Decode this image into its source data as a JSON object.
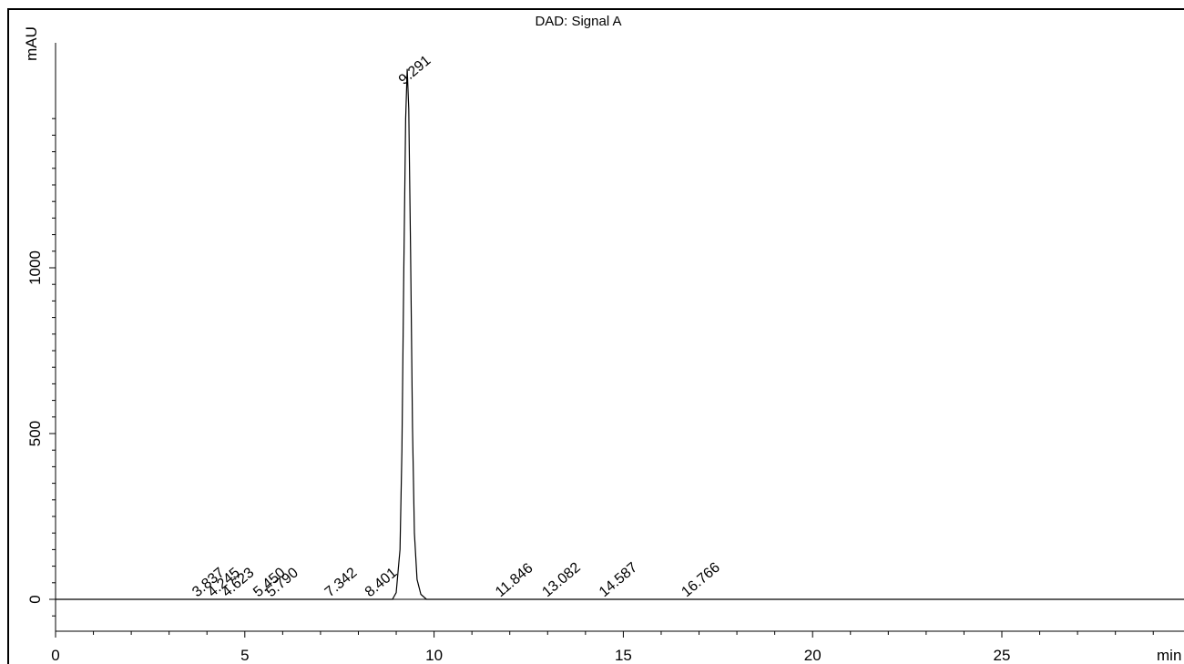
{
  "chart_data": {
    "type": "line",
    "title": "DAD: Signal A",
    "xlabel": "min",
    "ylabel": "mAU",
    "xlim": [
      0,
      30
    ],
    "ylim": [
      -80,
      1500
    ],
    "x_ticks": [
      0,
      5,
      10,
      15,
      20,
      25
    ],
    "y_ticks": [
      0,
      500,
      1000
    ],
    "grid": false,
    "series": [
      {
        "x": [
          0,
          8.9,
          9.0,
          9.1,
          9.15,
          9.2,
          9.25,
          9.291,
          9.33,
          9.38,
          9.43,
          9.48,
          9.55,
          9.65,
          9.8,
          30
        ],
        "values": [
          0,
          0,
          20,
          150,
          450,
          1000,
          1450,
          1600,
          1480,
          1050,
          520,
          200,
          60,
          15,
          0,
          0
        ]
      }
    ],
    "peaks": [
      {
        "rt": 3.837,
        "label": "3.837"
      },
      {
        "rt": 4.245,
        "label": "4.245"
      },
      {
        "rt": 4.623,
        "label": "4.623"
      },
      {
        "rt": 5.45,
        "label": "5.450"
      },
      {
        "rt": 5.79,
        "label": "5.790"
      },
      {
        "rt": 7.342,
        "label": "7.342"
      },
      {
        "rt": 8.401,
        "label": "8.401"
      },
      {
        "rt": 9.291,
        "label": "9.291",
        "height": 1600
      },
      {
        "rt": 11.846,
        "label": "11.846"
      },
      {
        "rt": 13.082,
        "label": "13.082"
      },
      {
        "rt": 14.587,
        "label": "14.587"
      },
      {
        "rt": 16.766,
        "label": "16.766"
      }
    ]
  }
}
